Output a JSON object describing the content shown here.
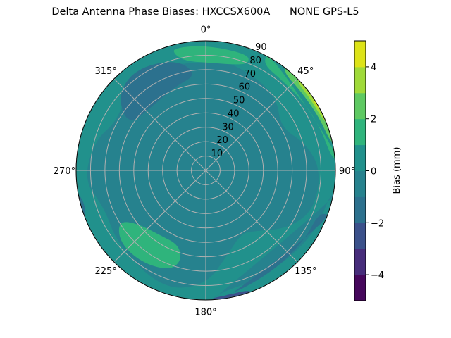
{
  "chart_data": {
    "type": "heatmap",
    "subtype": "polar-filled-contour",
    "title": "Delta Antenna Phase Biases: HXCCSX600A      NONE GPS-L5",
    "angular_ticks": [
      "0°",
      "45°",
      "90°",
      "135°",
      "180°",
      "225°",
      "270°",
      "315°"
    ],
    "radial_ticks": [
      "10",
      "20",
      "30",
      "40",
      "50",
      "60",
      "70",
      "80",
      "90"
    ],
    "radial_range": [
      0,
      90
    ],
    "angular_direction": "clockwise",
    "zero_location": "top",
    "grid": true,
    "colorbar": {
      "label": "Bias (mm)",
      "range": [
        -5,
        5
      ],
      "ticks": [
        "−4",
        "−2",
        "0",
        "2",
        "4"
      ],
      "tick_values": [
        -4,
        -2,
        0,
        2,
        4
      ],
      "levels": [
        -5,
        -4,
        -3,
        -2,
        -1,
        0,
        1,
        2,
        3,
        4,
        5
      ],
      "colors": [
        "#46085c",
        "#472d7b",
        "#3b518b",
        "#2c718e",
        "#26828e",
        "#21918c",
        "#2fb47c",
        "#5ec962",
        "#a0da39",
        "#dde318"
      ]
    },
    "background_level": [
      0,
      1
    ],
    "regions": [
      {
        "level": [
          -1,
          0
        ],
        "points": [
          [
            300,
            30
          ],
          [
            330,
            40
          ],
          [
            355,
            55
          ],
          [
            10,
            62
          ],
          [
            30,
            55
          ],
          [
            50,
            45
          ],
          [
            70,
            55
          ],
          [
            85,
            70
          ],
          [
            100,
            72
          ],
          [
            110,
            62
          ],
          [
            95,
            45
          ],
          [
            80,
            30
          ],
          [
            60,
            18
          ],
          [
            40,
            12
          ],
          [
            90,
            8
          ],
          [
            130,
            10
          ],
          [
            160,
            20
          ],
          [
            180,
            35
          ],
          [
            195,
            50
          ],
          [
            210,
            45
          ],
          [
            225,
            38
          ],
          [
            240,
            30
          ],
          [
            260,
            25
          ],
          [
            280,
            25
          ]
        ]
      },
      {
        "level": [
          -1,
          0
        ],
        "points": [
          [
            60,
            60
          ],
          [
            75,
            72
          ],
          [
            90,
            80
          ],
          [
            110,
            80
          ],
          [
            125,
            70
          ],
          [
            140,
            55
          ],
          [
            150,
            50
          ],
          [
            165,
            60
          ],
          [
            180,
            80
          ],
          [
            200,
            88
          ],
          [
            230,
            80
          ],
          [
            250,
            75
          ],
          [
            265,
            85
          ],
          [
            285,
            80
          ],
          [
            300,
            70
          ],
          [
            320,
            82
          ],
          [
            340,
            78
          ],
          [
            355,
            75
          ],
          [
            10,
            78
          ],
          [
            30,
            73
          ],
          [
            45,
            70
          ]
        ]
      },
      {
        "level": [
          -1,
          0
        ],
        "points": [
          [
            100,
            88
          ],
          [
            120,
            88
          ],
          [
            150,
            85
          ],
          [
            175,
            86
          ],
          [
            180,
            90
          ],
          [
            100,
            90
          ]
        ]
      },
      {
        "level": [
          -2,
          -1
        ],
        "points": [
          [
            300,
            62
          ],
          [
            310,
            80
          ],
          [
            325,
            86
          ],
          [
            345,
            80
          ],
          [
            355,
            67
          ],
          [
            340,
            62
          ],
          [
            320,
            58
          ]
        ]
      },
      {
        "level": [
          -2,
          -1
        ],
        "points": [
          [
            110,
            84
          ],
          [
            125,
            84
          ],
          [
            145,
            84
          ],
          [
            165,
            87
          ],
          [
            175,
            89
          ],
          [
            175,
            90
          ],
          [
            110,
            90
          ]
        ]
      },
      {
        "level": [
          -2,
          -1
        ],
        "points": [
          [
            250,
            88
          ],
          [
            258,
            88
          ],
          [
            262,
            90
          ],
          [
            248,
            90
          ]
        ]
      },
      {
        "level": [
          -3,
          -2
        ],
        "points": [
          [
            160,
            88
          ],
          [
            170,
            88
          ],
          [
            178,
            89
          ],
          [
            178,
            90
          ],
          [
            158,
            90
          ]
        ]
      },
      {
        "level": [
          1,
          2
        ],
        "points": [
          [
            345,
            83
          ],
          [
            350,
            77
          ],
          [
            0,
            75
          ],
          [
            15,
            76
          ],
          [
            22,
            80
          ],
          [
            20,
            86
          ],
          [
            0,
            87
          ],
          [
            345,
            88
          ]
        ]
      },
      {
        "level": [
          1,
          2
        ],
        "points": [
          [
            200,
            55
          ],
          [
            215,
            55
          ],
          [
            232,
            60
          ],
          [
            240,
            70
          ],
          [
            230,
            78
          ],
          [
            215,
            78
          ],
          [
            200,
            74
          ],
          [
            195,
            65
          ]
        ]
      },
      {
        "level": [
          1,
          2
        ],
        "points": [
          [
            28,
            84
          ],
          [
            40,
            82
          ],
          [
            55,
            83
          ],
          [
            70,
            85
          ],
          [
            85,
            88
          ],
          [
            85,
            90
          ],
          [
            28,
            90
          ]
        ]
      },
      {
        "level": [
          2,
          3
        ],
        "points": [
          [
            38,
            87
          ],
          [
            50,
            86
          ],
          [
            65,
            87
          ],
          [
            78,
            89
          ],
          [
            78,
            90
          ],
          [
            38,
            90
          ]
        ]
      },
      {
        "level": [
          3,
          4
        ],
        "points": [
          [
            45,
            88.5
          ],
          [
            55,
            88
          ],
          [
            68,
            89
          ],
          [
            72,
            90
          ],
          [
            45,
            90
          ]
        ]
      },
      {
        "level": [
          4,
          5
        ],
        "points": [
          [
            55,
            89.3
          ],
          [
            62,
            89.2
          ],
          [
            66,
            90
          ],
          [
            55,
            90
          ]
        ]
      }
    ]
  }
}
